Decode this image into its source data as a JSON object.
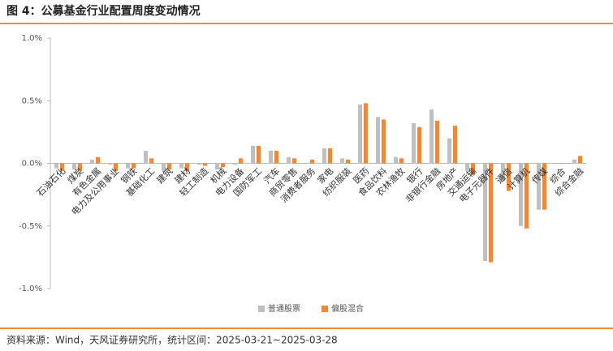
{
  "chart_data": {
    "type": "bar",
    "title": "图 4：公募基金行业配置周度变动情况",
    "source": "资料来源：Wind，天风证券研究所，统计区间：2025-03-21~2025-03-28",
    "categories": [
      "石油石化",
      "煤炭",
      "有色金属",
      "电力及公用事业",
      "钢铁",
      "基础化工",
      "建筑",
      "建材",
      "轻工制造",
      "机械",
      "电力设备",
      "国防军工",
      "汽车",
      "商贸零售",
      "消费者服务",
      "家电",
      "纺织服装",
      "医药",
      "食品饮料",
      "农林渔牧",
      "银行",
      "非银行金融",
      "房地产",
      "交通运输",
      "电子元器件",
      "通信",
      "计算机",
      "传媒",
      "综合",
      "综合金融"
    ],
    "series": [
      {
        "name": "普通股票",
        "color": "#bfbfbf",
        "values": [
          -0.04,
          -0.05,
          0.03,
          -0.01,
          -0.04,
          0.1,
          -0.06,
          -0.04,
          -0.01,
          -0.05,
          -0.01,
          0.14,
          0.1,
          0.05,
          0.0,
          0.12,
          0.04,
          0.47,
          0.37,
          0.05,
          0.32,
          0.43,
          0.2,
          -0.06,
          -0.78,
          -0.14,
          -0.5,
          -0.37,
          0.0,
          0.03
        ]
      },
      {
        "name": "偏股混合",
        "color": "#f0883a",
        "values": [
          -0.06,
          -0.06,
          0.05,
          -0.06,
          -0.04,
          0.04,
          -0.05,
          -0.06,
          -0.02,
          -0.03,
          0.04,
          0.14,
          0.1,
          0.04,
          0.03,
          0.12,
          0.03,
          0.48,
          0.35,
          0.04,
          0.29,
          0.34,
          0.3,
          -0.09,
          -0.79,
          -0.22,
          -0.52,
          -0.37,
          0.0,
          0.06
        ]
      }
    ],
    "ylim": [
      -1,
      1
    ],
    "yticks": [
      {
        "value": -1,
        "label": "-1.0%"
      },
      {
        "value": -0.5,
        "label": "-0.5%"
      },
      {
        "value": 0,
        "label": "0.0%"
      },
      {
        "value": 0.5,
        "label": "0.5%"
      },
      {
        "value": 1,
        "label": "1.0%"
      }
    ],
    "legend": "bottom"
  }
}
